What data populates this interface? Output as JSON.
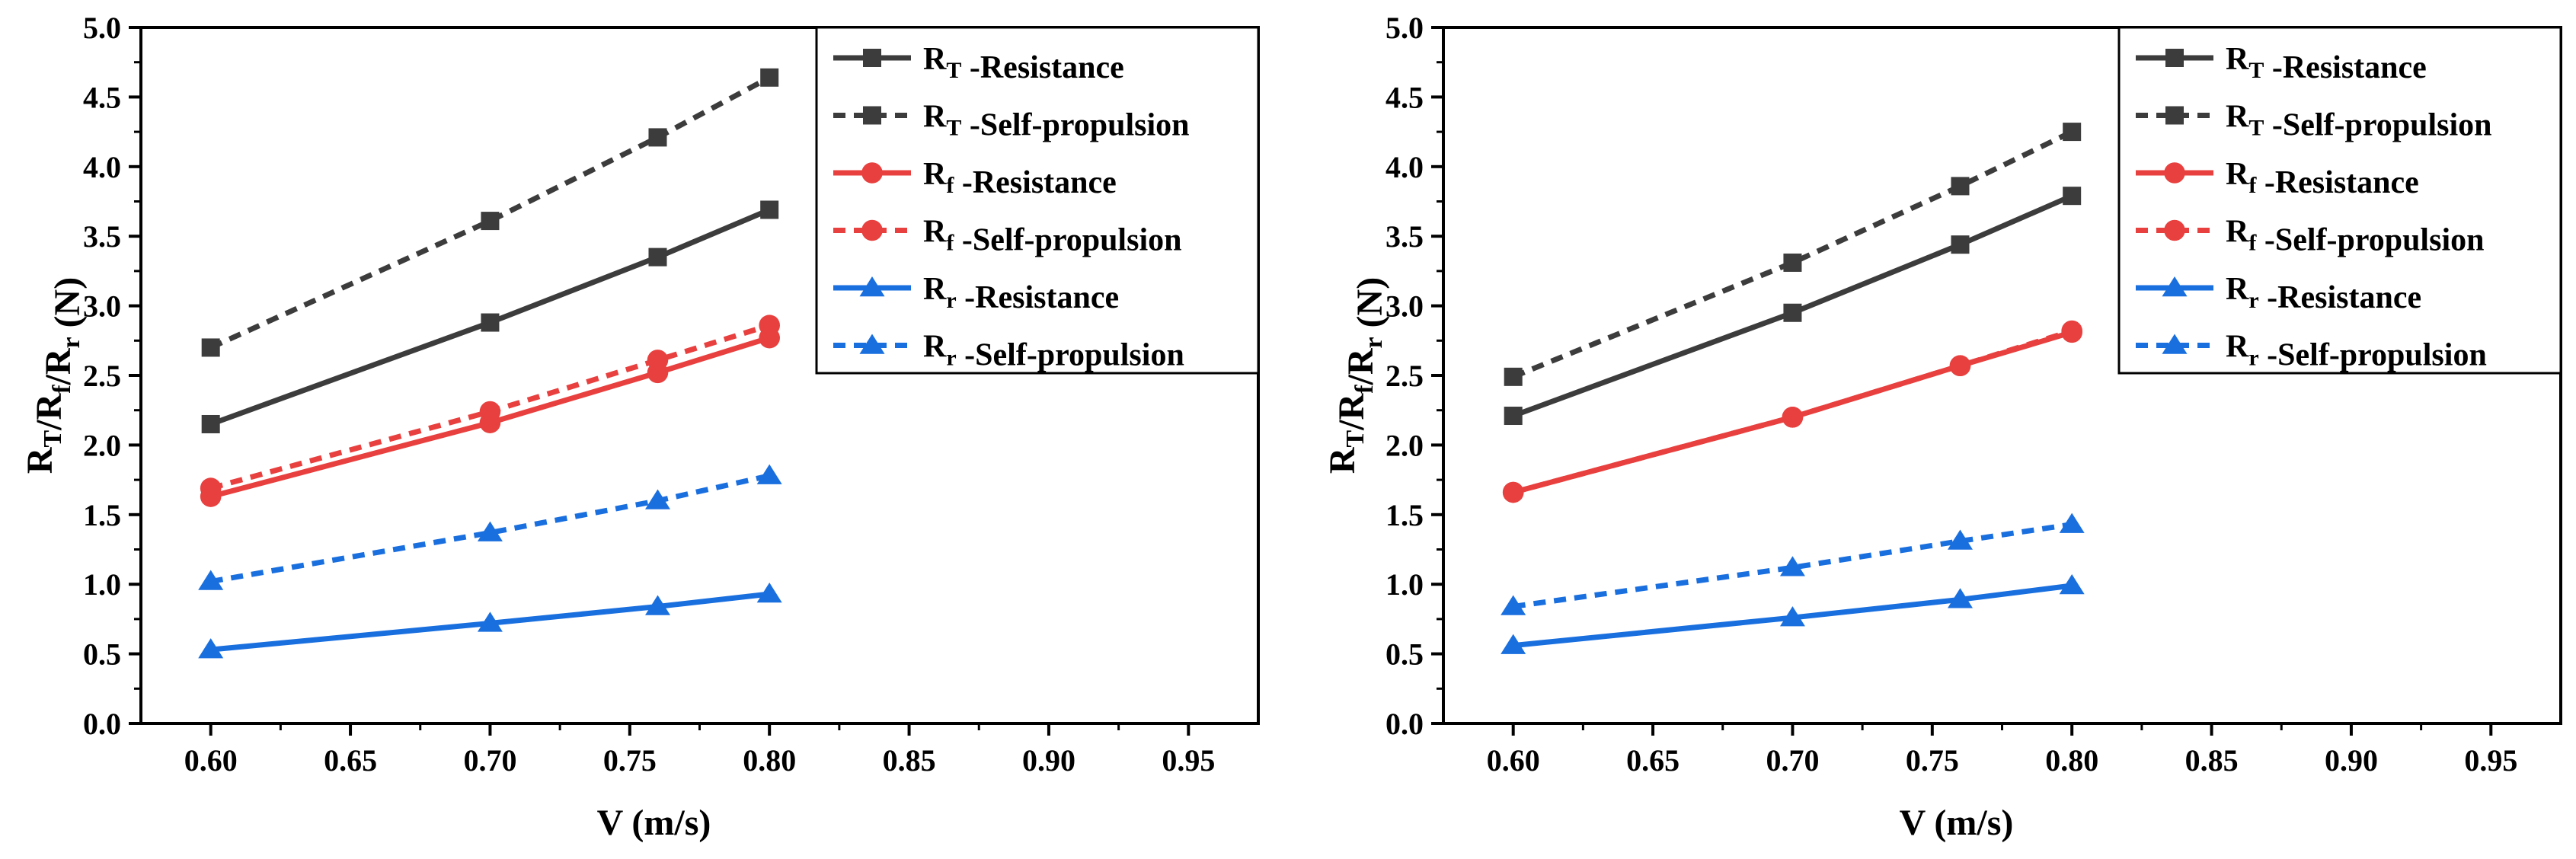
{
  "chart_data": [
    {
      "type": "line",
      "title": "",
      "xlabel": "V (m/s)",
      "ylabel": {
        "parts": [
          [
            "R",
            "T"
          ],
          [
            "/R",
            "f"
          ],
          [
            "/R",
            "r"
          ]
        ],
        "suffix": " (N)"
      },
      "xlim": [
        0.575,
        0.975
      ],
      "ylim": [
        0,
        5.0
      ],
      "xticks": [
        "0.60",
        "0.65",
        "0.70",
        "0.75",
        "0.80",
        "0.85",
        "0.90",
        "0.95"
      ],
      "yticks": [
        "0.0",
        "0.5",
        "1.0",
        "1.5",
        "2.0",
        "2.5",
        "3.0",
        "3.5",
        "4.0",
        "4.5",
        "5.0"
      ],
      "grid": false,
      "legend_position": "top-right",
      "x": [
        0.6,
        0.7,
        0.76,
        0.8
      ],
      "series": [
        {
          "name": "-Resistance",
          "symbol": "R",
          "sub": "T",
          "values": [
            2.15,
            2.88,
            3.35,
            3.69
          ],
          "color": "#3c3c3c",
          "dash": "solid",
          "marker": "square"
        },
        {
          "name": "-Self-propulsion",
          "symbol": "R",
          "sub": "T",
          "values": [
            2.7,
            3.61,
            4.21,
            4.64
          ],
          "color": "#3c3c3c",
          "dash": "dashed",
          "marker": "square"
        },
        {
          "name": "-Resistance",
          "symbol": "R",
          "sub": "f",
          "values": [
            1.63,
            2.16,
            2.52,
            2.77
          ],
          "color": "#e8403e",
          "dash": "solid",
          "marker": "circle"
        },
        {
          "name": "-Self-propulsion",
          "symbol": "R",
          "sub": "f",
          "values": [
            1.69,
            2.24,
            2.61,
            2.86
          ],
          "color": "#e8403e",
          "dash": "dashed",
          "marker": "circle"
        },
        {
          "name": "-Resistance",
          "symbol": "R",
          "sub": "r",
          "values": [
            0.53,
            0.72,
            0.84,
            0.93
          ],
          "color": "#1a6fdf",
          "dash": "solid",
          "marker": "triangle"
        },
        {
          "name": "-Self-propulsion",
          "symbol": "R",
          "sub": "r",
          "values": [
            1.02,
            1.37,
            1.6,
            1.78
          ],
          "color": "#1a6fdf",
          "dash": "dashed",
          "marker": "triangle"
        }
      ]
    },
    {
      "type": "line",
      "title": "",
      "xlabel": "V (m/s)",
      "ylabel": {
        "parts": [
          [
            "R",
            "T"
          ],
          [
            "/R",
            "f"
          ],
          [
            "/R",
            "r"
          ]
        ],
        "suffix": " (N)"
      },
      "xlim": [
        0.575,
        0.975
      ],
      "ylim": [
        0,
        5.0
      ],
      "xticks": [
        "0.60",
        "0.65",
        "0.70",
        "0.75",
        "0.80",
        "0.85",
        "0.90",
        "0.95"
      ],
      "yticks": [
        "0.0",
        "0.5",
        "1.0",
        "1.5",
        "2.0",
        "2.5",
        "3.0",
        "3.5",
        "4.0",
        "4.5",
        "5.0"
      ],
      "grid": false,
      "legend_position": "top-right",
      "x": [
        0.6,
        0.7,
        0.76,
        0.8
      ],
      "series": [
        {
          "name": "-Resistance",
          "symbol": "R",
          "sub": "T",
          "values": [
            2.21,
            2.95,
            3.44,
            3.79
          ],
          "color": "#3c3c3c",
          "dash": "solid",
          "marker": "square"
        },
        {
          "name": "-Self-propulsion",
          "symbol": "R",
          "sub": "T",
          "values": [
            2.49,
            3.31,
            3.86,
            4.25
          ],
          "color": "#3c3c3c",
          "dash": "dashed",
          "marker": "square"
        },
        {
          "name": "-Resistance",
          "symbol": "R",
          "sub": "f",
          "values": [
            1.66,
            2.2,
            2.57,
            2.81
          ],
          "color": "#e8403e",
          "dash": "solid",
          "marker": "circle"
        },
        {
          "name": "-Self-propulsion",
          "symbol": "R",
          "sub": "f",
          "values": [
            1.66,
            2.2,
            2.57,
            2.82
          ],
          "color": "#e8403e",
          "dash": "dashed",
          "marker": "circle"
        },
        {
          "name": "-Resistance",
          "symbol": "R",
          "sub": "r",
          "values": [
            0.56,
            0.76,
            0.89,
            0.99
          ],
          "color": "#1a6fdf",
          "dash": "solid",
          "marker": "triangle"
        },
        {
          "name": "-Self-propulsion",
          "symbol": "R",
          "sub": "r",
          "values": [
            0.84,
            1.12,
            1.31,
            1.43
          ],
          "color": "#1a6fdf",
          "dash": "dashed",
          "marker": "triangle"
        }
      ]
    }
  ]
}
